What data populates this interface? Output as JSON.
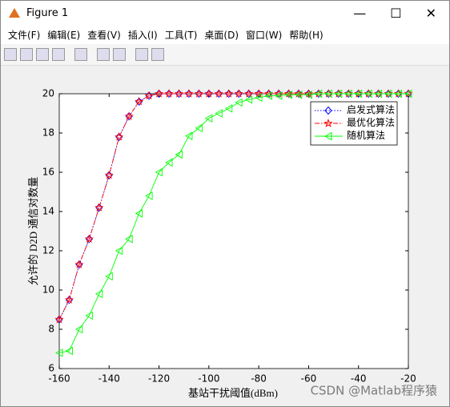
{
  "window": {
    "title": "Figure 1",
    "menu": [
      "文件(F)",
      "编辑(E)",
      "查看(V)",
      "插入(I)",
      "工具(T)",
      "桌面(D)",
      "窗口(W)",
      "帮助(H)"
    ]
  },
  "chart_data": {
    "type": "line",
    "xlabel": "基站干扰阈值(dBm)",
    "ylabel": "允许的 D2D 通信对数量",
    "x": [
      -160,
      -156,
      -152,
      -148,
      -144,
      -140,
      -136,
      -132,
      -128,
      -124,
      -120,
      -116,
      -112,
      -108,
      -104,
      -100,
      -96,
      -92,
      -88,
      -84,
      -80,
      -76,
      -72,
      -68,
      -64,
      -60,
      -56,
      -52,
      -48,
      -44,
      -40,
      -36,
      -32,
      -28,
      -24,
      -20
    ],
    "series": [
      {
        "name": "启发式算法",
        "color": "#0000ff",
        "dash": "dotted",
        "marker": "diamond",
        "values": [
          8.5,
          9.5,
          11.3,
          12.6,
          14.2,
          15.85,
          17.8,
          18.85,
          19.6,
          19.9,
          20,
          20,
          20,
          20,
          20,
          20,
          20,
          20,
          20,
          20,
          20,
          20,
          20,
          20,
          20,
          20,
          20,
          20,
          20,
          20,
          20,
          20,
          20,
          20,
          20,
          20
        ]
      },
      {
        "name": "最优化算法",
        "color": "#ff0000",
        "dash": "dashdot",
        "marker": "star",
        "values": [
          8.5,
          9.5,
          11.3,
          12.6,
          14.2,
          15.85,
          17.8,
          18.85,
          19.6,
          19.9,
          20,
          20,
          20,
          20,
          20,
          20,
          20,
          20,
          20,
          20,
          20,
          20,
          20,
          20,
          20,
          20,
          20,
          20,
          20,
          20,
          20,
          20,
          20,
          20,
          20,
          20
        ]
      },
      {
        "name": "随机算法",
        "color": "#00ff00",
        "dash": "solid",
        "marker": "triangle-left",
        "values": [
          6.8,
          6.9,
          8.0,
          8.7,
          9.8,
          10.7,
          12.0,
          12.6,
          13.9,
          14.8,
          16.0,
          16.5,
          16.9,
          17.85,
          18.25,
          18.75,
          19.0,
          19.25,
          19.55,
          19.7,
          19.8,
          19.9,
          19.9,
          19.95,
          19.95,
          19.95,
          20,
          20,
          20,
          20,
          20,
          20,
          20,
          20,
          20,
          20
        ]
      }
    ],
    "xlim": [
      -160,
      -20
    ],
    "xticks": [
      -160,
      -140,
      -120,
      -100,
      -80,
      -60,
      -40,
      -20
    ],
    "ylim": [
      6,
      20
    ],
    "yticks": [
      6,
      8,
      10,
      12,
      14,
      16,
      18,
      20
    ],
    "grid": false,
    "legend": "northeast",
    "watermark": "CSDN @Matlab程序猿"
  }
}
